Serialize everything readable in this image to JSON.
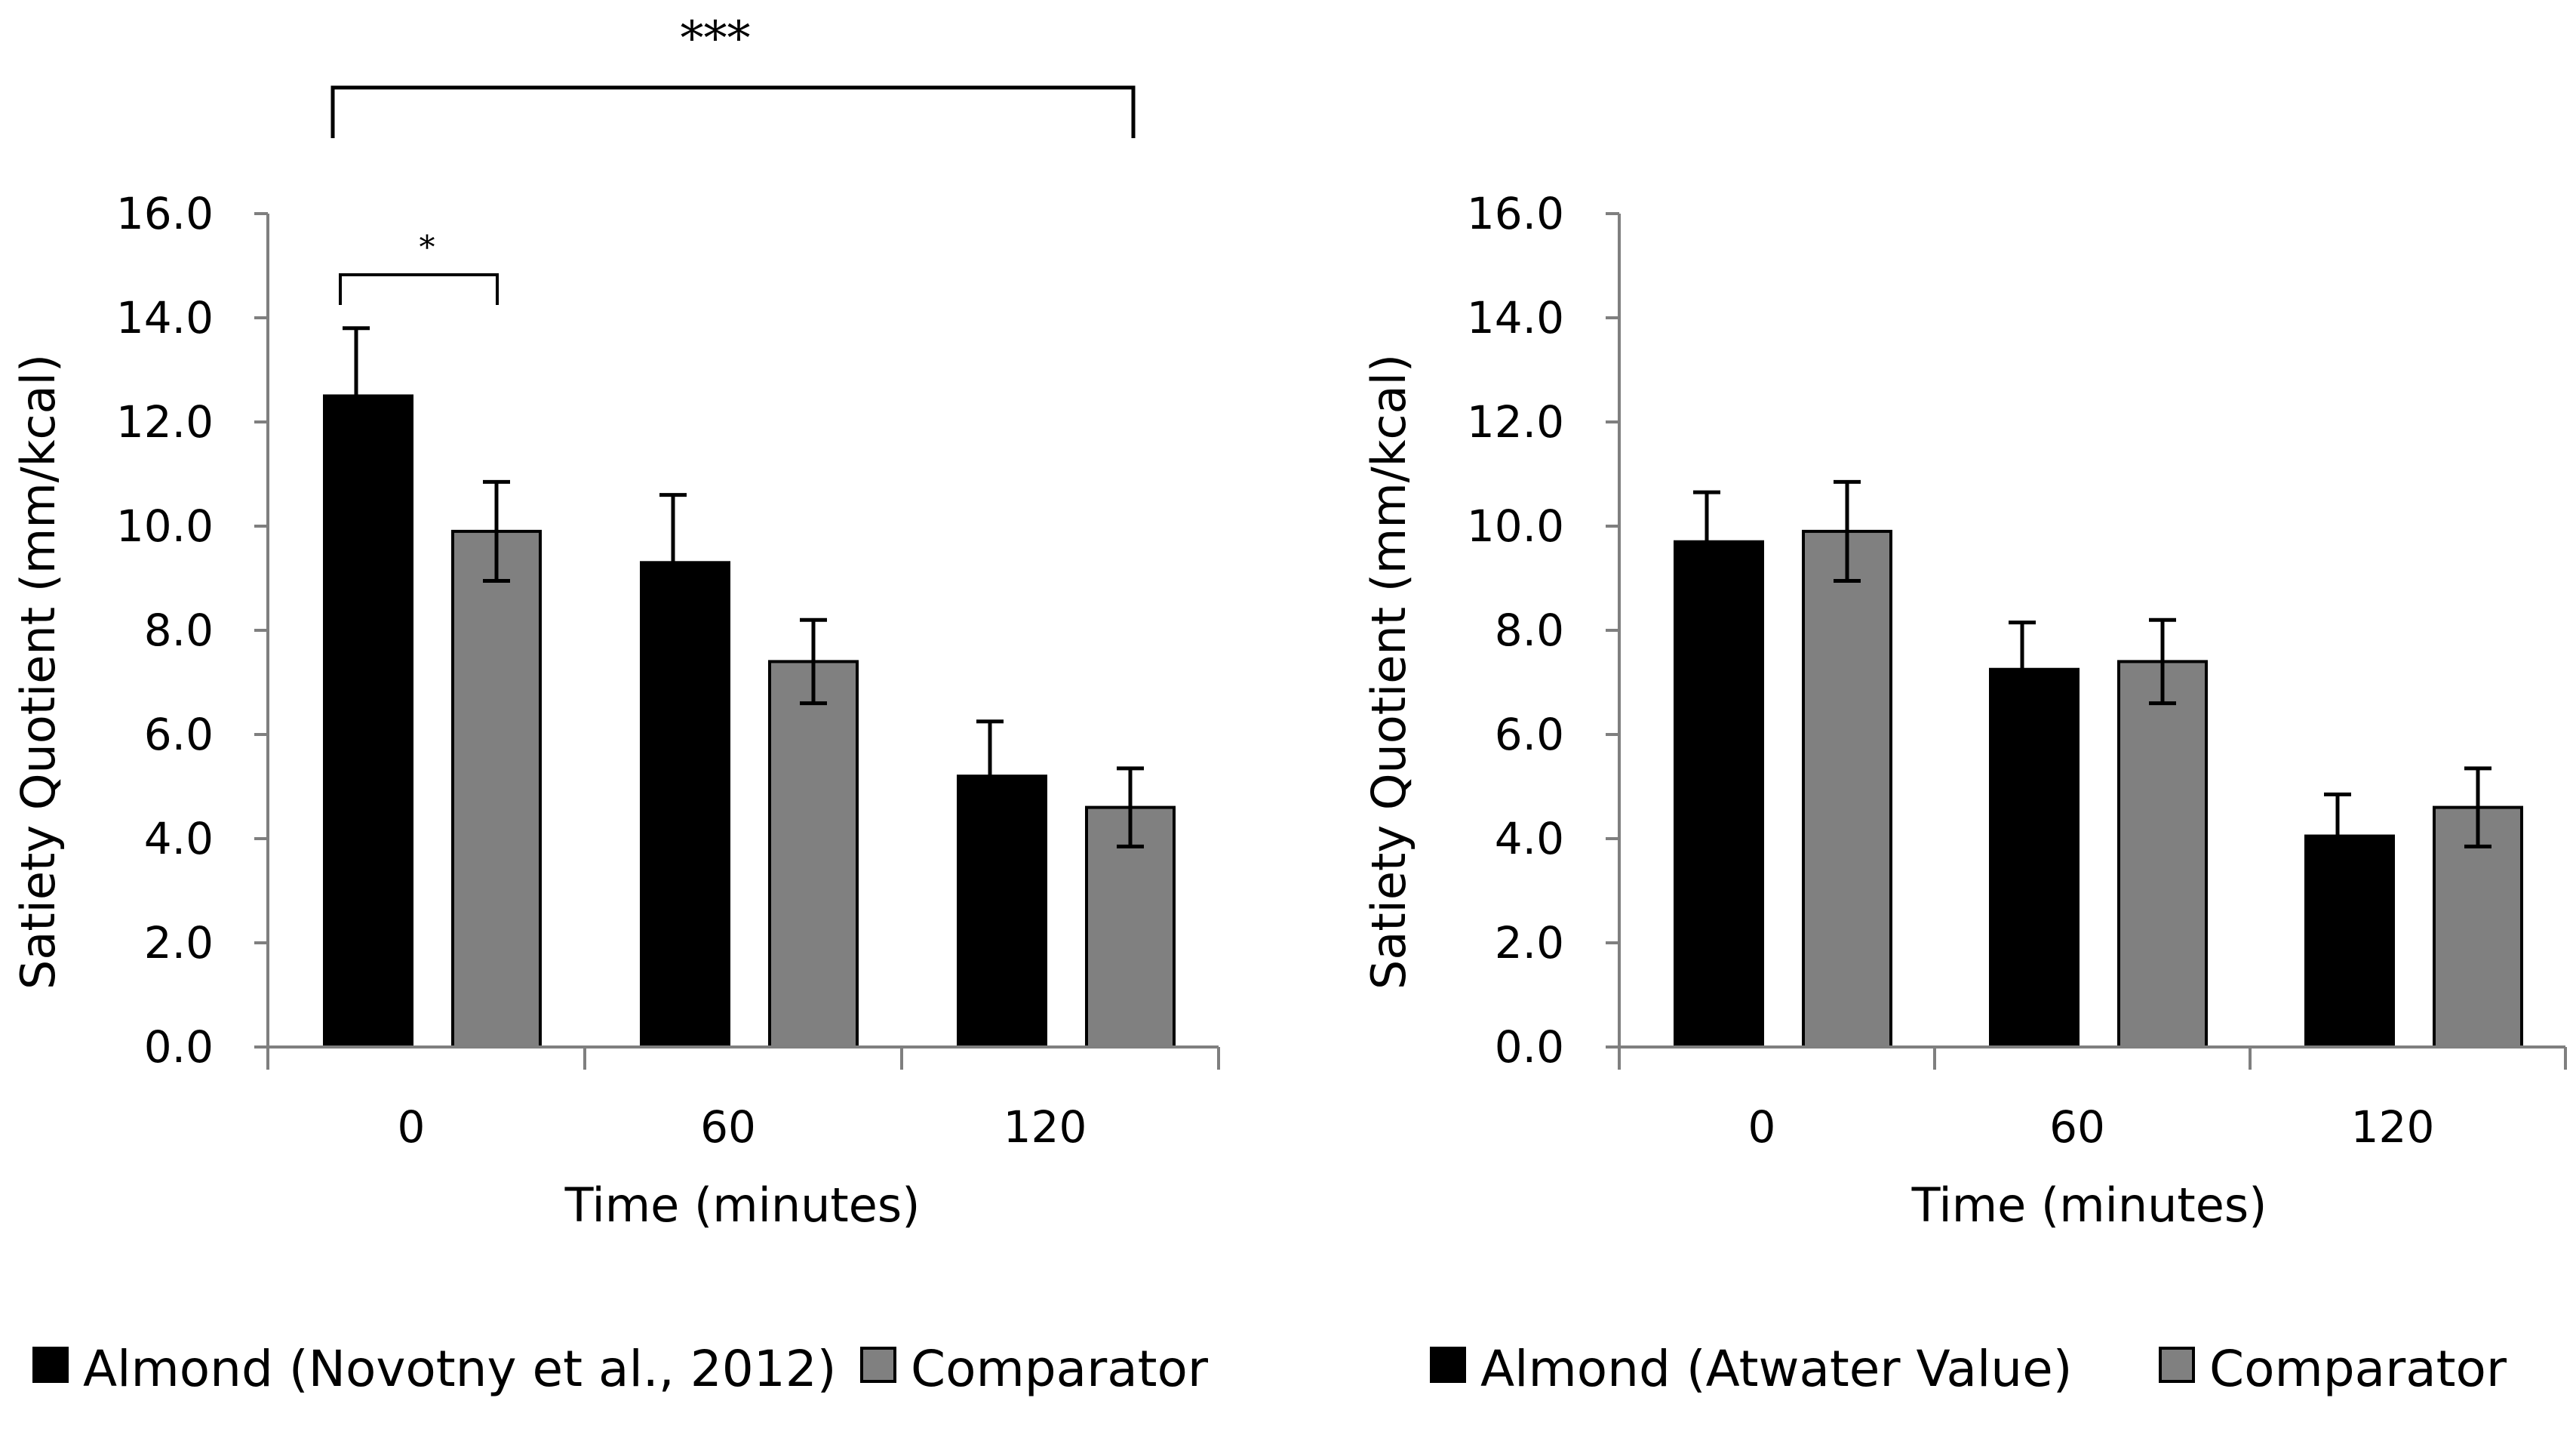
{
  "colors": {
    "almond": "#000000",
    "comparator": "#808080",
    "axis": "#7f7f7f",
    "error_bar": "#000000"
  },
  "chart_data": [
    {
      "type": "bar",
      "categories": [
        "0",
        "60",
        "120"
      ],
      "series": [
        {
          "name": "Almond (Novotny et al., 2012)",
          "values": [
            12.5,
            9.3,
            5.2
          ],
          "errors": [
            1.3,
            1.3,
            1.05
          ],
          "color": "#000000"
        },
        {
          "name": "Comparator",
          "values": [
            9.9,
            7.4,
            4.6
          ],
          "errors": [
            0.95,
            0.8,
            0.75
          ],
          "color": "#808080"
        }
      ],
      "xlabel": "Time (minutes)",
      "ylabel": "Satiety Quotient (mm/kcal)",
      "ylim": [
        0,
        16
      ],
      "yticks": [
        "0.0",
        "2.0",
        "4.0",
        "6.0",
        "8.0",
        "10.0",
        "12.0",
        "14.0",
        "16.0"
      ],
      "legend_position": "bottom",
      "annotations": [
        {
          "text": "*",
          "between": "Almond and Comparator at 0"
        },
        {
          "text": "***",
          "between": "0 and 120"
        }
      ]
    },
    {
      "type": "bar",
      "categories": [
        "0",
        "60",
        "120"
      ],
      "series": [
        {
          "name": "Almond (Atwater Value)",
          "values": [
            9.7,
            7.25,
            4.05
          ],
          "errors": [
            0.95,
            0.9,
            0.8
          ],
          "color": "#000000"
        },
        {
          "name": "Comparator",
          "values": [
            9.9,
            7.4,
            4.6
          ],
          "errors": [
            0.95,
            0.8,
            0.75
          ],
          "color": "#808080"
        }
      ],
      "xlabel": "Time (minutes)",
      "ylabel": "Satiety Quotient  (mm/kcal)",
      "ylim": [
        0,
        16
      ],
      "yticks": [
        "0.0",
        "2.0",
        "4.0",
        "6.0",
        "8.0",
        "10.0",
        "12.0",
        "14.0",
        "16.0"
      ],
      "legend_position": "bottom",
      "annotations": []
    }
  ]
}
